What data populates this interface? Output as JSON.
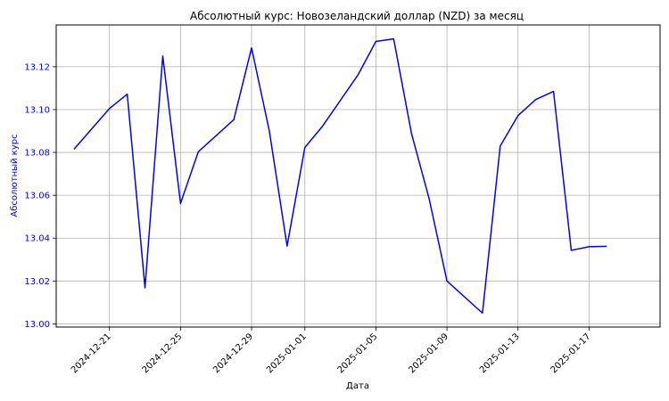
{
  "chart_data": {
    "type": "line",
    "title": "Абсолютный курс: Новозеландский доллар (NZD) за месяц",
    "xlabel": "Дата",
    "ylabel": "Абсолютный курс",
    "grid": true,
    "xlim": [
      "2024-12-18",
      "2025-01-21"
    ],
    "ylim": [
      12.9985,
      13.1395
    ],
    "x_ticks": [
      "2024-12-21",
      "2024-12-25",
      "2024-12-29",
      "2025-01-01",
      "2025-01-05",
      "2025-01-09",
      "2025-01-13",
      "2025-01-17"
    ],
    "y_ticks": [
      13.0,
      13.02,
      13.04,
      13.06,
      13.08,
      13.1,
      13.12
    ],
    "y_tick_labels": [
      "13.00",
      "13.02",
      "13.04",
      "13.06",
      "13.08",
      "13.10",
      "13.12"
    ],
    "series": [
      {
        "color": "#0000ff",
        "points": [
          {
            "x": "2024-12-19",
            "y": 13.0815
          },
          {
            "x": "2024-12-21",
            "y": 13.1005
          },
          {
            "x": "2024-12-22",
            "y": 13.1072
          },
          {
            "x": "2024-12-23",
            "y": 13.0168
          },
          {
            "x": "2024-12-24",
            "y": 13.125
          },
          {
            "x": "2024-12-25",
            "y": 13.0562
          },
          {
            "x": "2024-12-26",
            "y": 13.0803
          },
          {
            "x": "2024-12-28",
            "y": 13.0953
          },
          {
            "x": "2024-12-29",
            "y": 13.1288
          },
          {
            "x": "2024-12-30",
            "y": 13.09
          },
          {
            "x": "2024-12-31",
            "y": 13.0363
          },
          {
            "x": "2025-01-01",
            "y": 13.0823
          },
          {
            "x": "2025-01-02",
            "y": 13.0923
          },
          {
            "x": "2025-01-04",
            "y": 13.1163
          },
          {
            "x": "2025-01-05",
            "y": 13.1318
          },
          {
            "x": "2025-01-06",
            "y": 13.133
          },
          {
            "x": "2025-01-07",
            "y": 13.089
          },
          {
            "x": "2025-01-08",
            "y": 13.0583
          },
          {
            "x": "2025-01-09",
            "y": 13.02
          },
          {
            "x": "2025-01-11",
            "y": 13.005
          },
          {
            "x": "2025-01-12",
            "y": 13.083
          },
          {
            "x": "2025-01-13",
            "y": 13.0972
          },
          {
            "x": "2025-01-14",
            "y": 13.1047
          },
          {
            "x": "2025-01-15",
            "y": 13.1085
          },
          {
            "x": "2025-01-16",
            "y": 13.0343
          },
          {
            "x": "2025-01-17",
            "y": 13.036
          },
          {
            "x": "2025-01-18",
            "y": 13.0362
          }
        ]
      }
    ]
  }
}
